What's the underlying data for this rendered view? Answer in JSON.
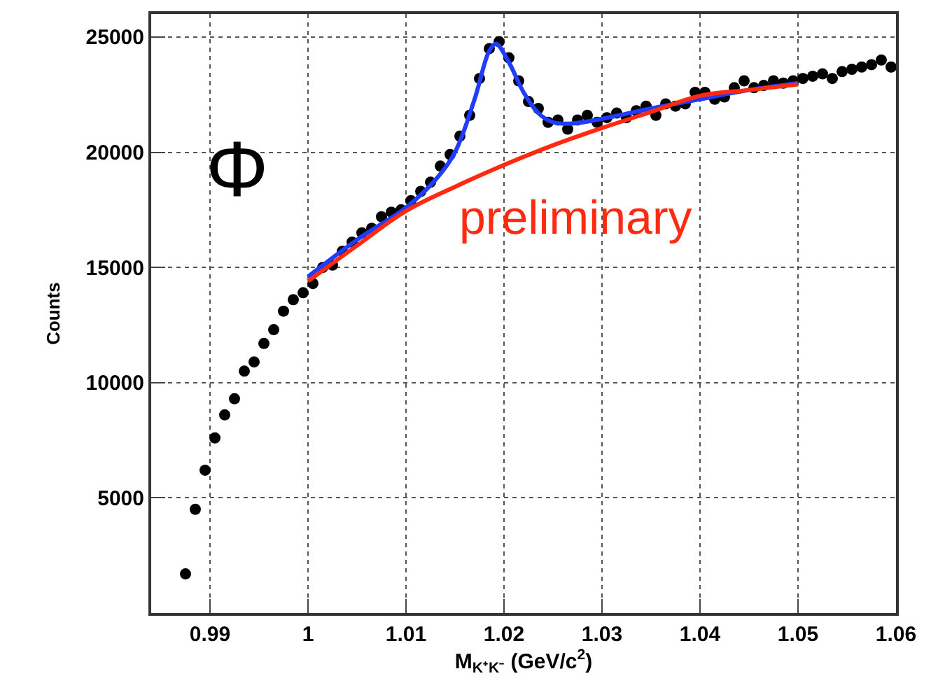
{
  "chart_data": {
    "type": "scatter",
    "xlabel": "M$_{K⁺K⁻}$ (GeV/c$^{2}$)",
    "ylabel": "Counts",
    "annotations": [
      "Φ",
      "preliminary"
    ],
    "xlim": [
      0.984,
      1.06
    ],
    "xticks": [
      0.99,
      1,
      1.01,
      1.02,
      1.03,
      1.04,
      1.05,
      1.06
    ],
    "ylim": [
      0,
      26000
    ],
    "yticks": [
      5000,
      10000,
      15000,
      20000,
      25000
    ],
    "grid": true,
    "marker": "circle",
    "series": [
      {
        "color": "#000000",
        "x": [
          0.9875,
          0.9885,
          0.9895,
          0.9905,
          0.9915,
          0.9925,
          0.9935,
          0.9945,
          0.9955,
          0.9965,
          0.9975,
          0.9985,
          0.9995,
          1.0005,
          1.0015,
          1.0025,
          1.0035,
          1.0045,
          1.0055,
          1.0065,
          1.0075,
          1.0085,
          1.0095,
          1.0105,
          1.0115,
          1.0125,
          1.0135,
          1.0145,
          1.0155,
          1.0165,
          1.0175,
          1.0185,
          1.0195,
          1.0205,
          1.0215,
          1.0225,
          1.0235,
          1.0245,
          1.0255,
          1.0265,
          1.0275,
          1.0285,
          1.0295,
          1.0305,
          1.0315,
          1.0325,
          1.0335,
          1.0345,
          1.0355,
          1.0365,
          1.0375,
          1.0385,
          1.0395,
          1.0405,
          1.0415,
          1.0425,
          1.0435,
          1.0445,
          1.0455,
          1.0465,
          1.0475,
          1.0485,
          1.0495,
          1.0505,
          1.0515,
          1.0525,
          1.0535,
          1.0545,
          1.0555,
          1.0565,
          1.0575,
          1.0585,
          1.0595
        ],
        "values": [
          1700,
          4500,
          6200,
          7600,
          8600,
          9300,
          10500,
          10900,
          11700,
          12300,
          13100,
          13600,
          13900,
          14300,
          15000,
          15100,
          15700,
          16100,
          16500,
          16700,
          17200,
          17400,
          17500,
          17900,
          18300,
          18700,
          19400,
          19900,
          20700,
          21600,
          23200,
          24500,
          24800,
          24100,
          23100,
          22200,
          21900,
          21300,
          21400,
          21000,
          21400,
          21600,
          21300,
          21500,
          21700,
          21500,
          21800,
          22000,
          21600,
          22100,
          22000,
          22100,
          22600,
          22600,
          22300,
          22400,
          22800,
          23100,
          22800,
          22900,
          23100,
          23000,
          23100,
          23200,
          23300,
          23400,
          23200,
          23500,
          23600,
          23700,
          23800,
          24000,
          23700
        ]
      },
      {
        "type": "line",
        "color": "#1f3cff",
        "marker": "none",
        "x": [
          1.0,
          1.005,
          1.01,
          1.013,
          1.015,
          1.017,
          1.0185,
          1.0192,
          1.0205,
          1.022,
          1.0235,
          1.025,
          1.027,
          1.03,
          1.035,
          1.04,
          1.045,
          1.05
        ],
        "values": [
          14600,
          16200,
          17600,
          18800,
          20000,
          22300,
          24400,
          24700,
          23900,
          22600,
          21700,
          21300,
          21250,
          21450,
          21900,
          22300,
          22700,
          23000
        ]
      },
      {
        "type": "line",
        "color": "#ff2a10",
        "marker": "none",
        "x": [
          1.0,
          1.005,
          1.01,
          1.015,
          1.02,
          1.025,
          1.03,
          1.035,
          1.04,
          1.045,
          1.05
        ],
        "values": [
          14400,
          15950,
          17450,
          18500,
          19450,
          20300,
          21050,
          21750,
          22450,
          22700,
          22950
        ]
      }
    ]
  }
}
